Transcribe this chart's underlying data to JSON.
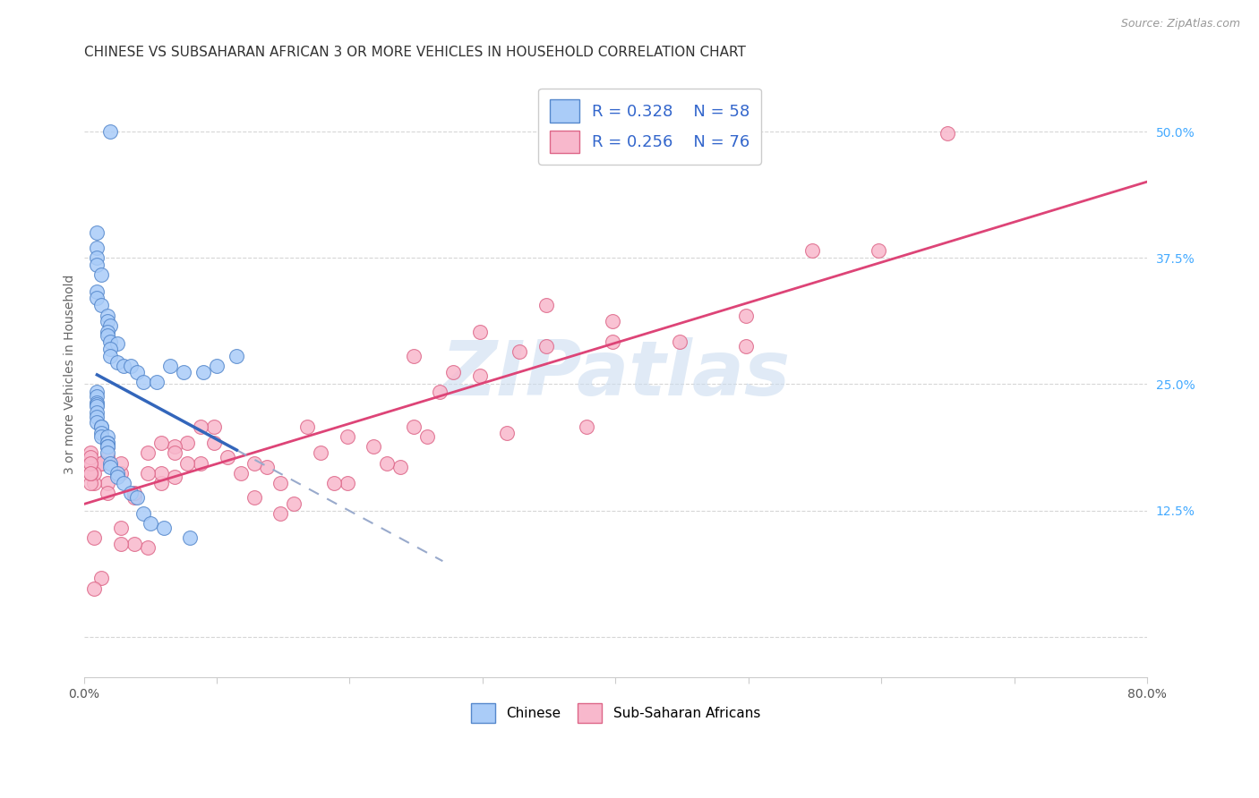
{
  "title": "CHINESE VS SUBSAHARAN AFRICAN 3 OR MORE VEHICLES IN HOUSEHOLD CORRELATION CHART",
  "source": "Source: ZipAtlas.com",
  "ylabel_label": "3 or more Vehicles in Household",
  "right_yticklabels": [
    "",
    "12.5%",
    "25.0%",
    "37.5%",
    "50.0%"
  ],
  "right_ytick_vals": [
    0.0,
    0.125,
    0.25,
    0.375,
    0.5
  ],
  "xlim": [
    0.0,
    0.8
  ],
  "ylim": [
    -0.04,
    0.56
  ],
  "legend_r_blue": "R = 0.328",
  "legend_n_blue": "N = 58",
  "legend_r_pink": "R = 0.256",
  "legend_n_pink": "N = 76",
  "blue_fill": "#aaccf8",
  "blue_edge": "#5588cc",
  "blue_line": "#3366bb",
  "blue_dash_color": "#99aacc",
  "pink_fill": "#f8b8cc",
  "pink_edge": "#dd6688",
  "pink_line": "#dd4477",
  "background": "#ffffff",
  "grid_color": "#cccccc",
  "title_color": "#333333",
  "source_color": "#999999",
  "watermark": "ZIPatlas",
  "watermark_color": "#ccddf0",
  "chinese_x": [
    0.02,
    0.01,
    0.01,
    0.01,
    0.01,
    0.013,
    0.01,
    0.01,
    0.013,
    0.018,
    0.018,
    0.02,
    0.018,
    0.018,
    0.02,
    0.025,
    0.02,
    0.02,
    0.025,
    0.03,
    0.035,
    0.04,
    0.045,
    0.055,
    0.065,
    0.075,
    0.09,
    0.1,
    0.115,
    0.01,
    0.01,
    0.01,
    0.01,
    0.01,
    0.01,
    0.01,
    0.01,
    0.013,
    0.013,
    0.013,
    0.013,
    0.018,
    0.018,
    0.018,
    0.018,
    0.018,
    0.018,
    0.02,
    0.02,
    0.025,
    0.025,
    0.03,
    0.035,
    0.04,
    0.045,
    0.05,
    0.06,
    0.08
  ],
  "chinese_y": [
    0.5,
    0.4,
    0.385,
    0.375,
    0.368,
    0.358,
    0.342,
    0.335,
    0.328,
    0.318,
    0.312,
    0.308,
    0.302,
    0.298,
    0.292,
    0.29,
    0.285,
    0.278,
    0.272,
    0.268,
    0.268,
    0.262,
    0.252,
    0.252,
    0.268,
    0.262,
    0.262,
    0.268,
    0.278,
    0.242,
    0.238,
    0.232,
    0.23,
    0.228,
    0.222,
    0.218,
    0.212,
    0.208,
    0.208,
    0.202,
    0.198,
    0.198,
    0.192,
    0.192,
    0.188,
    0.188,
    0.182,
    0.172,
    0.168,
    0.162,
    0.158,
    0.152,
    0.142,
    0.138,
    0.122,
    0.112,
    0.108,
    0.098
  ],
  "subsaharan_x": [
    0.65,
    0.598,
    0.548,
    0.498,
    0.498,
    0.448,
    0.398,
    0.398,
    0.378,
    0.348,
    0.348,
    0.328,
    0.318,
    0.298,
    0.298,
    0.278,
    0.268,
    0.258,
    0.248,
    0.248,
    0.238,
    0.228,
    0.218,
    0.198,
    0.198,
    0.188,
    0.178,
    0.168,
    0.158,
    0.148,
    0.148,
    0.138,
    0.128,
    0.128,
    0.118,
    0.108,
    0.098,
    0.098,
    0.088,
    0.088,
    0.078,
    0.078,
    0.068,
    0.068,
    0.068,
    0.058,
    0.058,
    0.058,
    0.048,
    0.048,
    0.048,
    0.038,
    0.038,
    0.038,
    0.028,
    0.028,
    0.028,
    0.028,
    0.018,
    0.018,
    0.018,
    0.018,
    0.013,
    0.013,
    0.013,
    0.008,
    0.008,
    0.008,
    0.008,
    0.005,
    0.005,
    0.005,
    0.005,
    0.005,
    0.005,
    0.005
  ],
  "subsaharan_y": [
    0.498,
    0.382,
    0.382,
    0.288,
    0.318,
    0.292,
    0.292,
    0.312,
    0.208,
    0.328,
    0.288,
    0.282,
    0.202,
    0.302,
    0.258,
    0.262,
    0.242,
    0.198,
    0.278,
    0.208,
    0.168,
    0.172,
    0.188,
    0.198,
    0.152,
    0.152,
    0.182,
    0.208,
    0.132,
    0.152,
    0.122,
    0.168,
    0.138,
    0.172,
    0.162,
    0.178,
    0.192,
    0.208,
    0.172,
    0.208,
    0.192,
    0.172,
    0.188,
    0.182,
    0.158,
    0.152,
    0.162,
    0.192,
    0.162,
    0.088,
    0.182,
    0.138,
    0.142,
    0.092,
    0.092,
    0.162,
    0.172,
    0.108,
    0.178,
    0.188,
    0.152,
    0.142,
    0.172,
    0.172,
    0.058,
    0.048,
    0.098,
    0.152,
    0.162,
    0.172,
    0.182,
    0.178,
    0.152,
    0.162,
    0.172,
    0.162
  ]
}
